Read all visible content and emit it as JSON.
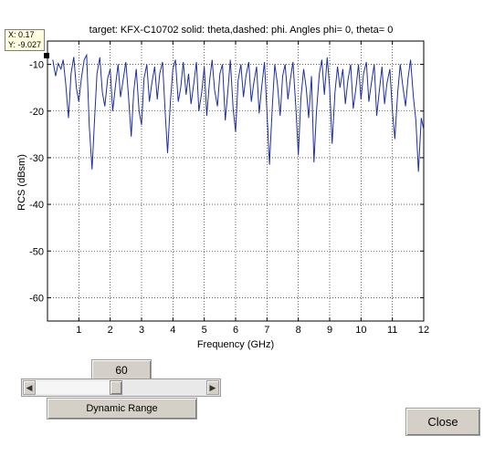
{
  "chart_data": {
    "type": "line",
    "title": "target: KFX-C10702  solid: theta,dashed: phi. Angles phi= 0, theta= 0",
    "xlabel": "Frequency (GHz)",
    "ylabel": "RCS (dBsm)",
    "xlim": [
      0,
      12
    ],
    "ylim": [
      -65,
      -5
    ],
    "xticks": [
      1,
      2,
      3,
      4,
      5,
      6,
      7,
      8,
      9,
      10,
      11,
      12
    ],
    "yticks": [
      -10,
      -20,
      -30,
      -40,
      -50,
      -60
    ],
    "grid": true,
    "line_color": "#1f2fa0",
    "series": [
      {
        "values": [
          [
            0.17,
            -9.0
          ],
          [
            0.26,
            -12.5
          ],
          [
            0.34,
            -9.8
          ],
          [
            0.43,
            -11.0
          ],
          [
            0.5,
            -9.0
          ],
          [
            0.58,
            -14.0
          ],
          [
            0.67,
            -21.5
          ],
          [
            0.75,
            -12.0
          ],
          [
            0.84,
            -8.4
          ],
          [
            0.92,
            -15.0
          ],
          [
            1.0,
            -18.0
          ],
          [
            1.08,
            -13.0
          ],
          [
            1.17,
            -9.0
          ],
          [
            1.25,
            -8.0
          ],
          [
            1.33,
            -23.0
          ],
          [
            1.42,
            -32.5
          ],
          [
            1.5,
            -22.0
          ],
          [
            1.58,
            -12.0
          ],
          [
            1.67,
            -8.5
          ],
          [
            1.75,
            -16.0
          ],
          [
            1.83,
            -19.0
          ],
          [
            1.92,
            -13.0
          ],
          [
            2.0,
            -11.0
          ],
          [
            2.08,
            -20.0
          ],
          [
            2.17,
            -14.5
          ],
          [
            2.25,
            -10.0
          ],
          [
            2.33,
            -17.0
          ],
          [
            2.42,
            -13.0
          ],
          [
            2.5,
            -9.5
          ],
          [
            2.58,
            -16.5
          ],
          [
            2.67,
            -25.5
          ],
          [
            2.75,
            -16.0
          ],
          [
            2.83,
            -11.0
          ],
          [
            2.92,
            -20.0
          ],
          [
            3.0,
            -23.0
          ],
          [
            3.08,
            -13.0
          ],
          [
            3.17,
            -10.0
          ],
          [
            3.25,
            -18.0
          ],
          [
            3.33,
            -14.0
          ],
          [
            3.42,
            -10.5
          ],
          [
            3.5,
            -17.5
          ],
          [
            3.58,
            -12.0
          ],
          [
            3.67,
            -9.5
          ],
          [
            3.75,
            -20.0
          ],
          [
            3.83,
            -29.0
          ],
          [
            3.92,
            -18.0
          ],
          [
            4.0,
            -11.0
          ],
          [
            4.08,
            -9.0
          ],
          [
            4.17,
            -18.0
          ],
          [
            4.25,
            -15.0
          ],
          [
            4.33,
            -9.5
          ],
          [
            4.42,
            -16.5
          ],
          [
            4.5,
            -12.0
          ],
          [
            4.58,
            -18.5
          ],
          [
            4.67,
            -14.0
          ],
          [
            4.75,
            -9.5
          ],
          [
            4.83,
            -20.0
          ],
          [
            4.92,
            -16.0
          ],
          [
            5.0,
            -10.5
          ],
          [
            5.08,
            -21.0
          ],
          [
            5.17,
            -13.5
          ],
          [
            5.25,
            -9.0
          ],
          [
            5.33,
            -15.5
          ],
          [
            5.42,
            -19.0
          ],
          [
            5.5,
            -12.0
          ],
          [
            5.58,
            -10.0
          ],
          [
            5.67,
            -22.0
          ],
          [
            5.75,
            -16.0
          ],
          [
            5.83,
            -9.0
          ],
          [
            5.92,
            -19.5
          ],
          [
            6.0,
            -24.5
          ],
          [
            6.08,
            -13.5
          ],
          [
            6.17,
            -10.0
          ],
          [
            6.25,
            -17.0
          ],
          [
            6.33,
            -12.5
          ],
          [
            6.42,
            -9.5
          ],
          [
            6.5,
            -18.0
          ],
          [
            6.58,
            -14.0
          ],
          [
            6.67,
            -10.5
          ],
          [
            6.75,
            -20.5
          ],
          [
            6.83,
            -15.0
          ],
          [
            6.92,
            -9.5
          ],
          [
            7.0,
            -20.0
          ],
          [
            7.08,
            -31.5
          ],
          [
            7.17,
            -19.0
          ],
          [
            7.25,
            -10.0
          ],
          [
            7.33,
            -14.0
          ],
          [
            7.42,
            -21.0
          ],
          [
            7.5,
            -12.5
          ],
          [
            7.58,
            -10.0
          ],
          [
            7.67,
            -17.5
          ],
          [
            7.75,
            -13.0
          ],
          [
            7.83,
            -9.5
          ],
          [
            7.92,
            -19.0
          ],
          [
            8.0,
            -29.5
          ],
          [
            8.08,
            -17.5
          ],
          [
            8.17,
            -11.0
          ],
          [
            8.25,
            -15.0
          ],
          [
            8.33,
            -21.5
          ],
          [
            8.42,
            -12.5
          ],
          [
            8.5,
            -31.0
          ],
          [
            8.58,
            -20.0
          ],
          [
            8.67,
            -12.0
          ],
          [
            8.75,
            -9.0
          ],
          [
            8.83,
            -16.5
          ],
          [
            8.92,
            -8.5
          ],
          [
            9.0,
            -15.0
          ],
          [
            9.08,
            -27.0
          ],
          [
            9.17,
            -16.0
          ],
          [
            9.25,
            -10.5
          ],
          [
            9.33,
            -15.0
          ],
          [
            9.42,
            -11.0
          ],
          [
            9.5,
            -18.5
          ],
          [
            9.58,
            -13.5
          ],
          [
            9.67,
            -10.0
          ],
          [
            9.75,
            -19.5
          ],
          [
            9.83,
            -15.5
          ],
          [
            9.92,
            -10.0
          ],
          [
            10.0,
            -17.5
          ],
          [
            10.08,
            -12.0
          ],
          [
            10.17,
            -9.5
          ],
          [
            10.25,
            -18.0
          ],
          [
            10.33,
            -14.0
          ],
          [
            10.42,
            -10.0
          ],
          [
            10.5,
            -21.0
          ],
          [
            10.58,
            -16.0
          ],
          [
            10.67,
            -10.5
          ],
          [
            10.75,
            -18.5
          ],
          [
            10.83,
            -14.0
          ],
          [
            10.92,
            -11.0
          ],
          [
            11.0,
            -20.0
          ],
          [
            11.08,
            -26.0
          ],
          [
            11.17,
            -16.0
          ],
          [
            11.25,
            -10.0
          ],
          [
            11.33,
            -14.5
          ],
          [
            11.42,
            -19.0
          ],
          [
            11.5,
            -13.0
          ],
          [
            11.58,
            -9.0
          ],
          [
            11.67,
            -17.0
          ],
          [
            11.75,
            -22.0
          ],
          [
            11.83,
            -33.0
          ],
          [
            11.92,
            -21.5
          ],
          [
            12.0,
            -24.0
          ]
        ]
      }
    ]
  },
  "datatip": {
    "x_label": "X: 0.17",
    "y_label": "Y: -9.027"
  },
  "controls": {
    "slider_value": "60",
    "slider_position": 0.47,
    "dynamic_range_label": "Dynamic Range",
    "close_label": "Close"
  }
}
